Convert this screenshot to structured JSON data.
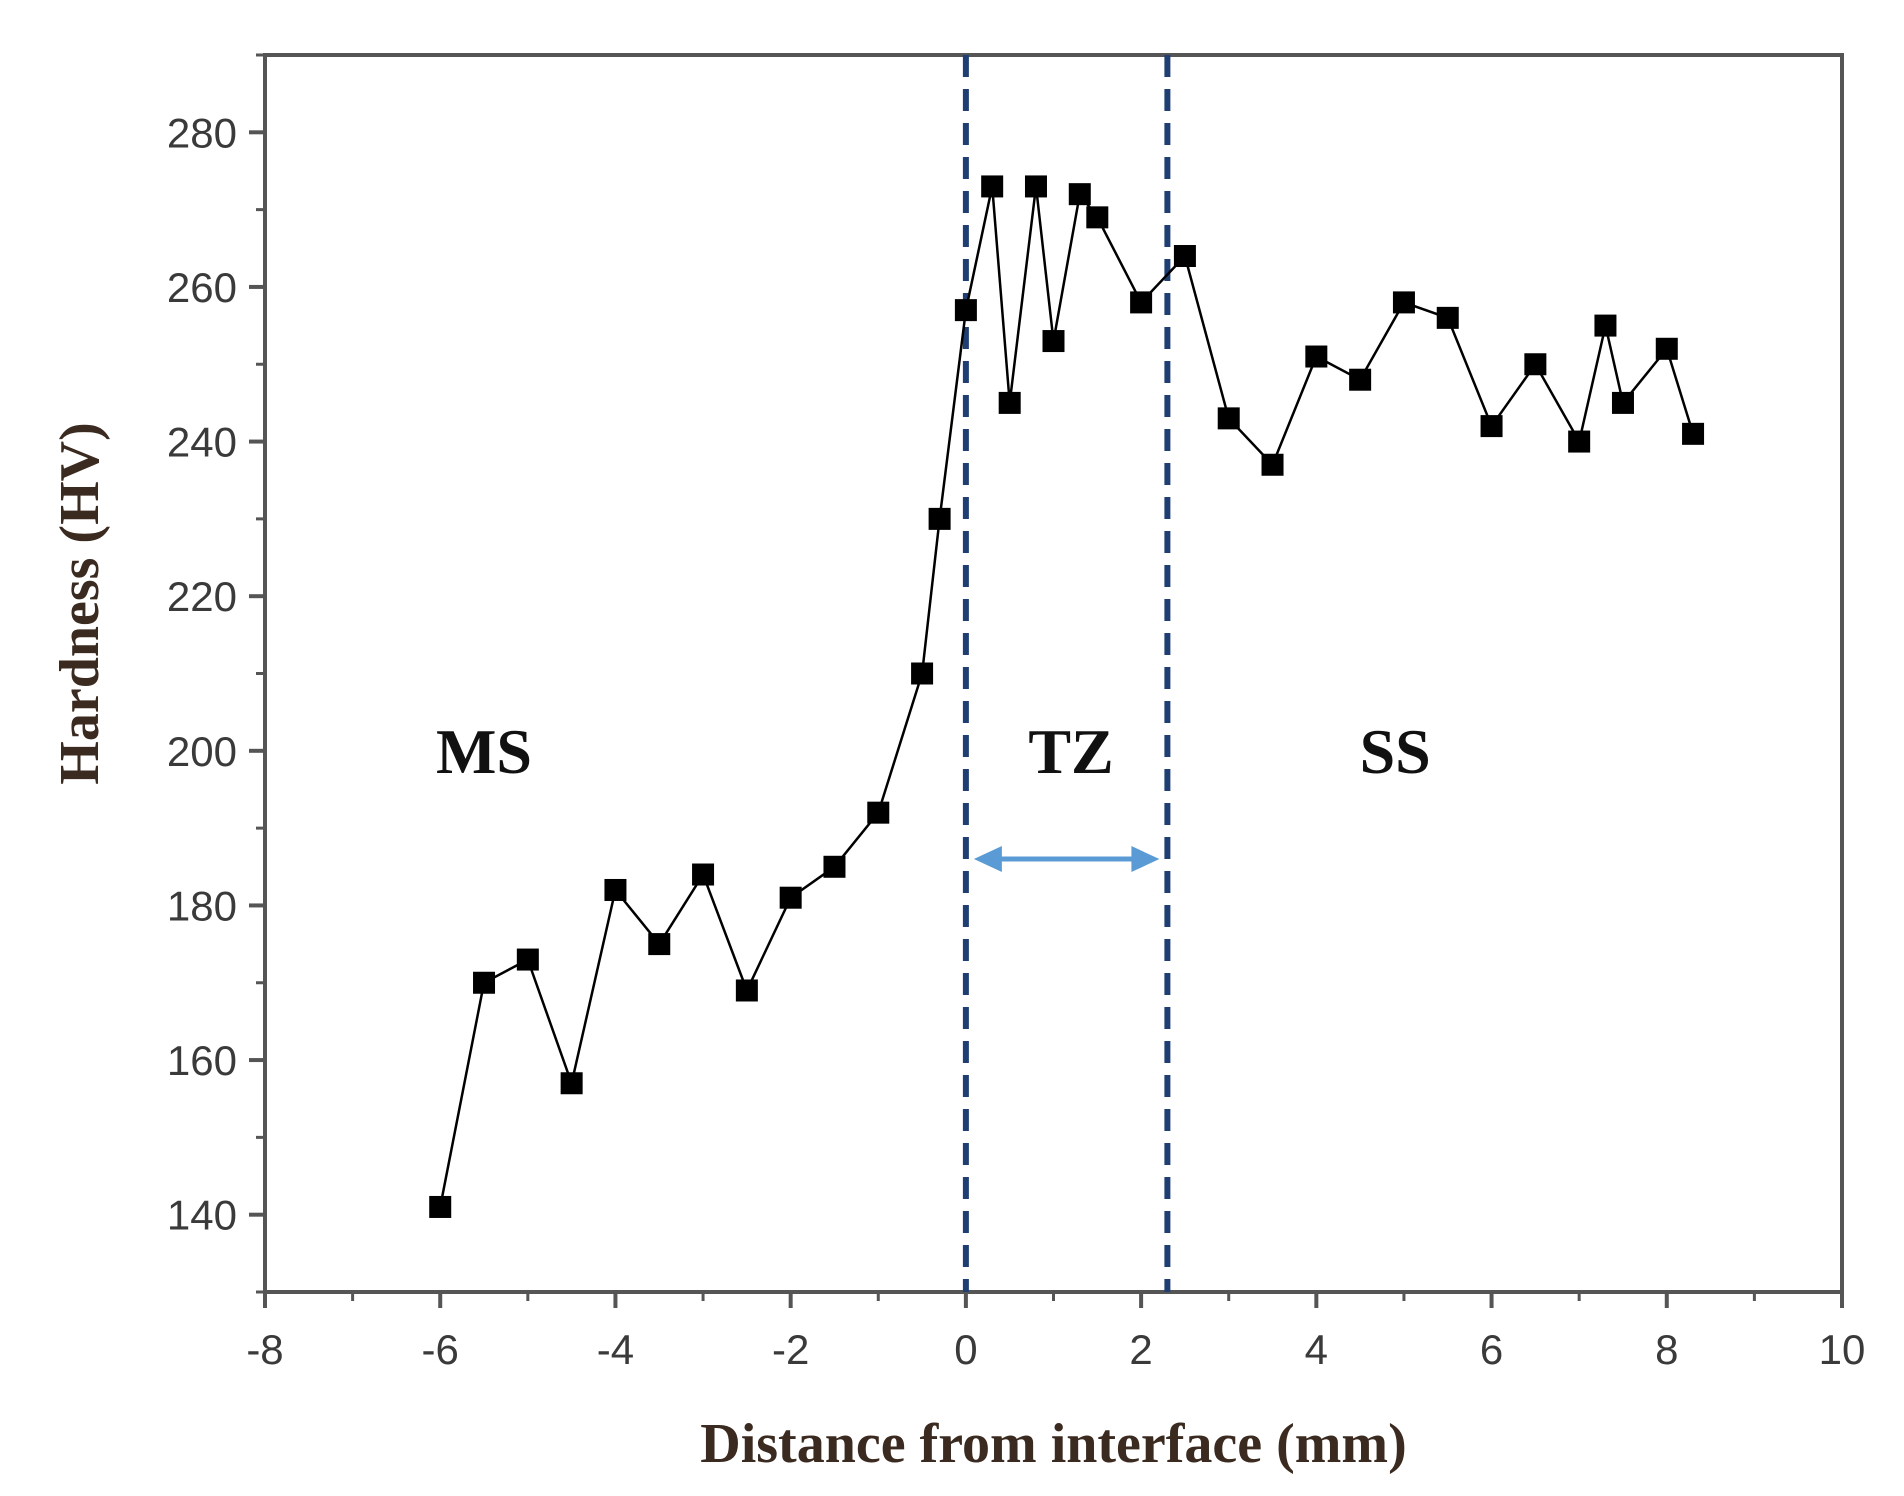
{
  "chart_data": {
    "type": "line",
    "xlabel": "Distance from interface (mm)",
    "ylabel": "Hardness (HV)",
    "xlim": [
      -8,
      10
    ],
    "ylim": [
      130,
      290
    ],
    "x_ticks": [
      -8,
      -6,
      -4,
      -2,
      0,
      2,
      4,
      6,
      8,
      10
    ],
    "y_ticks": [
      140,
      160,
      180,
      200,
      220,
      240,
      260,
      280
    ],
    "grid": false,
    "legend": "none",
    "series": [
      {
        "marker": "square",
        "color": "#000000",
        "points": [
          {
            "x": -6.0,
            "y": 141
          },
          {
            "x": -5.5,
            "y": 170
          },
          {
            "x": -5.0,
            "y": 173
          },
          {
            "x": -4.5,
            "y": 157
          },
          {
            "x": -4.0,
            "y": 182
          },
          {
            "x": -3.5,
            "y": 175
          },
          {
            "x": -3.0,
            "y": 184
          },
          {
            "x": -2.5,
            "y": 169
          },
          {
            "x": -2.0,
            "y": 181
          },
          {
            "x": -1.5,
            "y": 185
          },
          {
            "x": -1.0,
            "y": 192
          },
          {
            "x": -0.5,
            "y": 210
          },
          {
            "x": -0.3,
            "y": 230
          },
          {
            "x": 0.0,
            "y": 257
          },
          {
            "x": 0.3,
            "y": 273
          },
          {
            "x": 0.5,
            "y": 245
          },
          {
            "x": 0.8,
            "y": 273
          },
          {
            "x": 1.0,
            "y": 253
          },
          {
            "x": 1.3,
            "y": 272
          },
          {
            "x": 1.5,
            "y": 269
          },
          {
            "x": 2.0,
            "y": 258
          },
          {
            "x": 2.5,
            "y": 264
          },
          {
            "x": 3.0,
            "y": 243
          },
          {
            "x": 3.5,
            "y": 237
          },
          {
            "x": 4.0,
            "y": 251
          },
          {
            "x": 4.5,
            "y": 248
          },
          {
            "x": 5.0,
            "y": 258
          },
          {
            "x": 5.5,
            "y": 256
          },
          {
            "x": 6.0,
            "y": 242
          },
          {
            "x": 6.5,
            "y": 250
          },
          {
            "x": 7.0,
            "y": 240
          },
          {
            "x": 7.3,
            "y": 255
          },
          {
            "x": 7.5,
            "y": 245
          },
          {
            "x": 8.0,
            "y": 252
          },
          {
            "x": 8.3,
            "y": 241
          }
        ]
      }
    ],
    "vertical_lines": [
      {
        "x": 0.0,
        "style": "dashed",
        "color": "#1f3f73"
      },
      {
        "x": 2.3,
        "style": "dashed",
        "color": "#1f3f73"
      }
    ],
    "regions": [
      {
        "label": "MS",
        "x": -5.5,
        "y": 200
      },
      {
        "label": "TZ",
        "x": 1.2,
        "y": 200
      },
      {
        "label": "SS",
        "x": 4.9,
        "y": 200
      }
    ],
    "arrow": {
      "x_start": 0.0,
      "x_end": 2.3,
      "y": 186,
      "color": "#5b9bd5"
    }
  }
}
